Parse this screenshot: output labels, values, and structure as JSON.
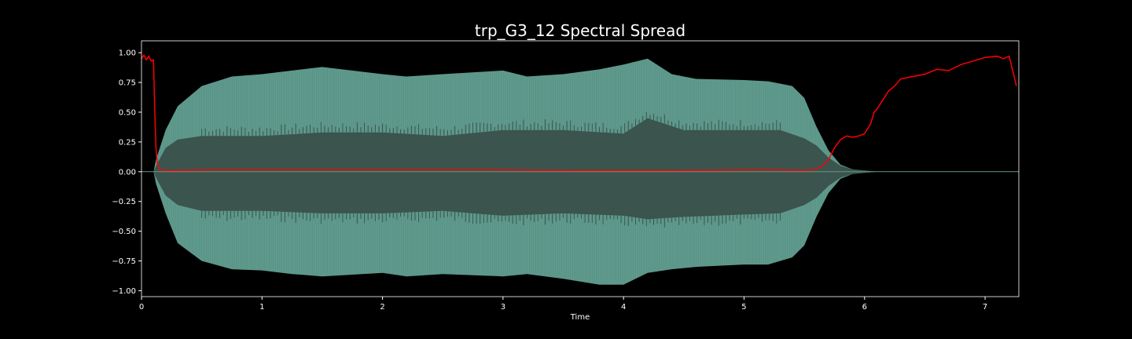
{
  "chart_data": {
    "type": "line",
    "title": "trp_G3_12 Spectral Spread",
    "xlabel": "Time",
    "ylabel": "",
    "xlim": [
      0,
      7.28
    ],
    "ylim": [
      -1.05,
      1.1
    ],
    "xticks": [
      0,
      1,
      2,
      3,
      4,
      5,
      6,
      7
    ],
    "xtick_labels": [
      "0",
      "1",
      "2",
      "3",
      "4",
      "5",
      "6",
      "7"
    ],
    "yticks": [
      1.0,
      0.75,
      0.5,
      0.25,
      0.0,
      -0.25,
      -0.5,
      -0.75,
      -1.0
    ],
    "ytick_labels": [
      "1.00",
      "0.75",
      "0.50",
      "0.25",
      "0.00",
      "−0.25",
      "−0.50",
      "−0.75",
      "−1.00"
    ],
    "grid": false,
    "colors": {
      "background": "#000000",
      "axes_edge": "#ffffff",
      "waveform_outer": "#5f9a8d",
      "waveform_inner": "#3b544d",
      "spread_line": "#ff0000"
    },
    "series": [
      {
        "kind": "waveform-envelope-outer",
        "x": [
          0.1,
          0.12,
          0.2,
          0.3,
          0.5,
          0.75,
          1.0,
          1.25,
          1.5,
          2.0,
          2.2,
          2.5,
          3.0,
          3.2,
          3.5,
          3.8,
          4.0,
          4.2,
          4.4,
          4.6,
          5.0,
          5.2,
          5.4,
          5.5,
          5.6,
          5.7,
          5.8,
          5.9,
          6.0,
          6.1,
          6.2,
          7.28
        ],
        "upper": [
          0.0,
          0.1,
          0.35,
          0.55,
          0.72,
          0.8,
          0.82,
          0.85,
          0.88,
          0.82,
          0.8,
          0.82,
          0.85,
          0.8,
          0.82,
          0.86,
          0.9,
          0.95,
          0.82,
          0.78,
          0.77,
          0.76,
          0.72,
          0.62,
          0.38,
          0.18,
          0.06,
          0.02,
          0.01,
          0.0,
          0.0,
          0.0
        ],
        "lower": [
          0.0,
          -0.1,
          -0.35,
          -0.6,
          -0.75,
          -0.82,
          -0.83,
          -0.86,
          -0.88,
          -0.85,
          -0.88,
          -0.86,
          -0.88,
          -0.86,
          -0.9,
          -0.95,
          -0.95,
          -0.85,
          -0.82,
          -0.8,
          -0.78,
          -0.78,
          -0.72,
          -0.62,
          -0.38,
          -0.18,
          -0.06,
          -0.02,
          -0.01,
          0.0,
          0.0,
          0.0
        ]
      },
      {
        "kind": "waveform-envelope-inner",
        "x": [
          0.1,
          0.12,
          0.2,
          0.3,
          0.5,
          1.0,
          1.5,
          2.0,
          2.5,
          3.0,
          3.5,
          4.0,
          4.2,
          4.5,
          5.0,
          5.3,
          5.5,
          5.6,
          5.7,
          5.8,
          5.9,
          6.0,
          6.1,
          6.2,
          7.28
        ],
        "upper": [
          0.0,
          0.05,
          0.2,
          0.27,
          0.3,
          0.3,
          0.33,
          0.33,
          0.3,
          0.35,
          0.35,
          0.32,
          0.45,
          0.35,
          0.35,
          0.35,
          0.28,
          0.22,
          0.12,
          0.05,
          0.02,
          0.01,
          0.0,
          0.0,
          0.0
        ],
        "lower": [
          0.0,
          -0.05,
          -0.2,
          -0.28,
          -0.33,
          -0.33,
          -0.35,
          -0.35,
          -0.33,
          -0.37,
          -0.35,
          -0.37,
          -0.4,
          -0.38,
          -0.36,
          -0.35,
          -0.28,
          -0.22,
          -0.12,
          -0.05,
          -0.02,
          -0.01,
          0.0,
          0.0,
          0.0
        ]
      },
      {
        "kind": "line",
        "x": [
          0.0,
          0.02,
          0.04,
          0.06,
          0.08,
          0.1,
          0.11,
          0.12,
          0.13,
          0.15,
          0.2,
          0.3,
          0.5,
          1.0,
          1.5,
          2.0,
          2.5,
          3.0,
          3.5,
          4.0,
          4.5,
          5.0,
          5.3,
          5.5,
          5.6,
          5.65,
          5.7,
          5.75,
          5.8,
          5.85,
          5.9,
          5.95,
          6.0,
          6.05,
          6.08,
          6.1,
          6.15,
          6.2,
          6.25,
          6.3,
          6.4,
          6.5,
          6.6,
          6.7,
          6.8,
          6.9,
          7.0,
          7.1,
          7.15,
          7.2,
          7.23,
          7.26
        ],
        "y": [
          0.95,
          0.98,
          0.94,
          0.97,
          0.93,
          0.94,
          0.5,
          0.2,
          0.08,
          0.02,
          0.01,
          0.01,
          0.015,
          0.015,
          0.015,
          0.015,
          0.015,
          0.015,
          0.01,
          0.01,
          0.01,
          0.015,
          0.015,
          0.01,
          0.02,
          0.05,
          0.1,
          0.2,
          0.27,
          0.3,
          0.29,
          0.3,
          0.32,
          0.4,
          0.5,
          0.52,
          0.6,
          0.68,
          0.72,
          0.78,
          0.8,
          0.82,
          0.86,
          0.85,
          0.9,
          0.93,
          0.96,
          0.97,
          0.95,
          0.97,
          0.85,
          0.72
        ]
      }
    ]
  }
}
